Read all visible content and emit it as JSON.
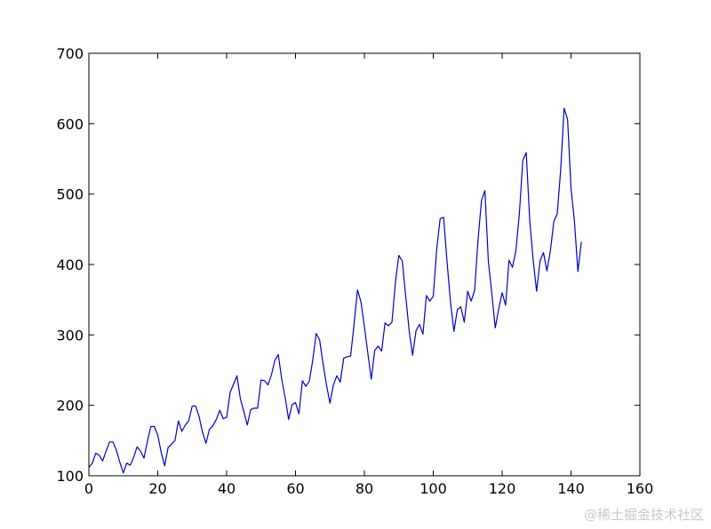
{
  "chart_data": {
    "type": "line",
    "title": "",
    "xlabel": "",
    "ylabel": "",
    "xlim": [
      0,
      160
    ],
    "ylim": [
      100,
      700
    ],
    "xticks": [
      0,
      20,
      40,
      60,
      80,
      100,
      120,
      140,
      160
    ],
    "yticks": [
      100,
      200,
      300,
      400,
      500,
      600,
      700
    ],
    "grid": false,
    "line_color": "#0000cc",
    "series": [
      {
        "x": [
          0,
          1,
          2,
          3,
          4,
          5,
          6,
          7,
          8,
          9,
          10,
          11,
          12,
          13,
          14,
          15,
          16,
          17,
          18,
          19,
          20,
          21,
          22,
          23,
          24,
          25,
          26,
          27,
          28,
          29,
          30,
          31,
          32,
          33,
          34,
          35,
          36,
          37,
          38,
          39,
          40,
          41,
          42,
          43,
          44,
          45,
          46,
          47,
          48,
          49,
          50,
          51,
          52,
          53,
          54,
          55,
          56,
          57,
          58,
          59,
          60,
          61,
          62,
          63,
          64,
          65,
          66,
          67,
          68,
          69,
          70,
          71,
          72,
          73,
          74,
          75,
          76,
          77,
          78,
          79,
          80,
          81,
          82,
          83,
          84,
          85,
          86,
          87,
          88,
          89,
          90,
          91,
          92,
          93,
          94,
          95,
          96,
          97,
          98,
          99,
          100,
          101,
          102,
          103,
          104,
          105,
          106,
          107,
          108,
          109,
          110,
          111,
          112,
          113,
          114,
          115,
          116,
          117,
          118,
          119,
          120,
          121,
          122,
          123,
          124,
          125,
          126,
          127,
          128,
          129,
          130,
          131,
          132,
          133,
          134,
          135,
          136,
          137,
          138,
          139,
          140,
          141,
          142,
          143
        ],
        "values": [
          112,
          118,
          132,
          129,
          121,
          135,
          148,
          148,
          136,
          119,
          104,
          118,
          115,
          126,
          141,
          135,
          125,
          149,
          170,
          170,
          158,
          133,
          114,
          140,
          145,
          150,
          178,
          163,
          172,
          178,
          199,
          199,
          184,
          162,
          146,
          166,
          171,
          180,
          193,
          181,
          183,
          218,
          230,
          242,
          209,
          191,
          172,
          194,
          196,
          196,
          236,
          235,
          229,
          243,
          264,
          272,
          237,
          211,
          180,
          201,
          204,
          188,
          235,
          227,
          234,
          264,
          302,
          293,
          259,
          229,
          203,
          229,
          242,
          233,
          267,
          269,
          270,
          315,
          364,
          347,
          312,
          274,
          237,
          278,
          284,
          277,
          317,
          313,
          318,
          374,
          413,
          405,
          355,
          306,
          271,
          306,
          315,
          301,
          356,
          348,
          355,
          422,
          465,
          467,
          404,
          347,
          305,
          336,
          340,
          318,
          362,
          348,
          363,
          435,
          491,
          505,
          404,
          359,
          310,
          337,
          360,
          342,
          406,
          396,
          420,
          472,
          548,
          559,
          463,
          407,
          362,
          405,
          417,
          391,
          419,
          461,
          472,
          535,
          622,
          606,
          508,
          461,
          390,
          432
        ]
      }
    ]
  },
  "watermark": "@稀土掘金技术社区"
}
